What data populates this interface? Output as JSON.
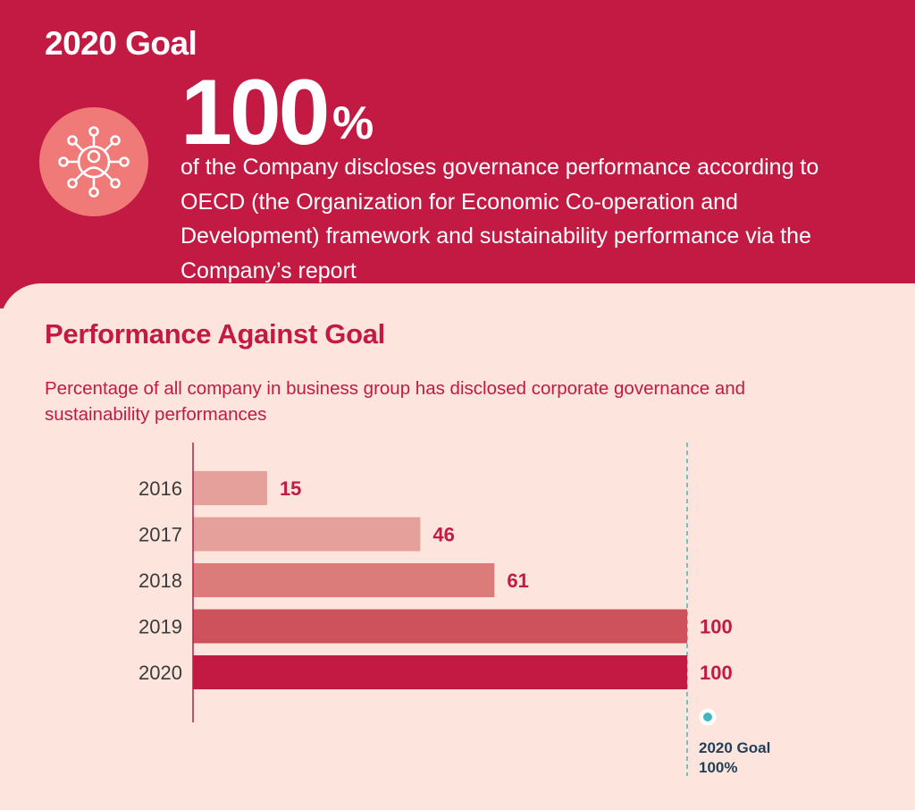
{
  "header": {
    "title": "2020 Goal",
    "big_value": "100",
    "big_unit": "%",
    "icon": "network-person-icon",
    "description": "of the Company discloses governance performance according to OECD (the Organization for Economic Co-operation and Development) framework and sustainability performance via the Company’s report"
  },
  "section": {
    "title": "Performance Against Goal",
    "subtitle": "Percentage of all company in business group has disclosed corporate governance and sustainability performances"
  },
  "colors": {
    "brand": "#c21a43",
    "icon_bg": "#f07a78",
    "background": "#fde5dd",
    "goal_line": "#43b7bf",
    "goal_text": "#1f3f5b"
  },
  "chart_data": {
    "type": "bar",
    "orientation": "horizontal",
    "categories": [
      "2016",
      "2017",
      "2018",
      "2019",
      "2020"
    ],
    "values": [
      15,
      46,
      61,
      100,
      100
    ],
    "bar_colors": [
      "#e5a09c",
      "#e5a09c",
      "#db7b7a",
      "#cd525c",
      "#c21a43"
    ],
    "xlim": [
      0,
      100
    ],
    "goal": {
      "value": 100,
      "label_line1": "2020 Goal",
      "label_line2": "100%"
    },
    "grid": false
  }
}
